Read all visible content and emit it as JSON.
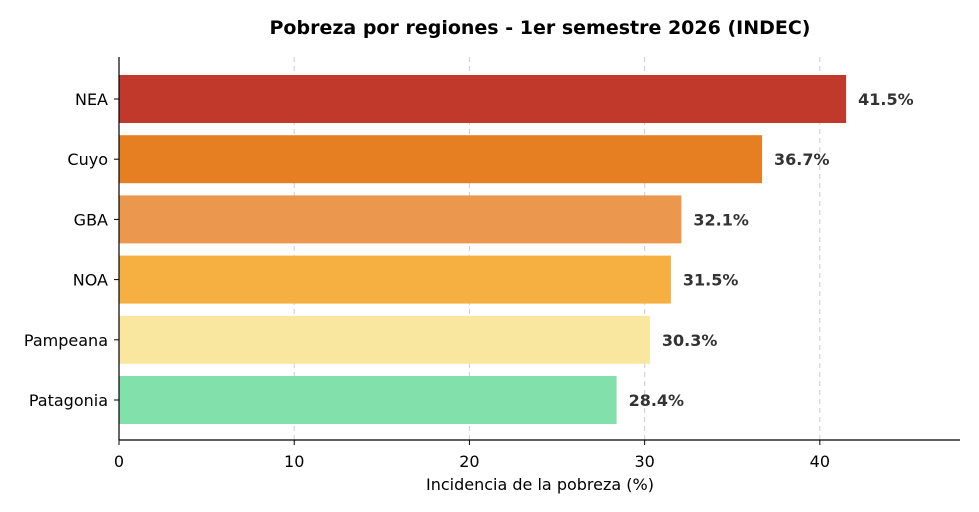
{
  "chart_data": {
    "type": "bar",
    "orientation": "horizontal",
    "title": "Pobreza por regiones - 1er semestre 2026 (INDEC)",
    "xlabel": "Incidencia de la pobreza (%)",
    "ylabel": "",
    "xlim": [
      0,
      48
    ],
    "xticks": [
      0,
      10,
      20,
      30,
      40
    ],
    "grid": "x-dashed",
    "categories": [
      "NEA",
      "Cuyo",
      "GBA",
      "NOA",
      "Pampeana",
      "Patagonia"
    ],
    "values": [
      41.5,
      36.7,
      32.1,
      31.5,
      30.3,
      28.4
    ],
    "value_labels": [
      "41.5%",
      "36.7%",
      "32.1%",
      "31.5%",
      "30.3%",
      "28.4%"
    ],
    "colors": [
      "#c0392b",
      "#e67e22",
      "#eb984e",
      "#f5b041",
      "#f9e79f",
      "#82e0aa"
    ]
  }
}
